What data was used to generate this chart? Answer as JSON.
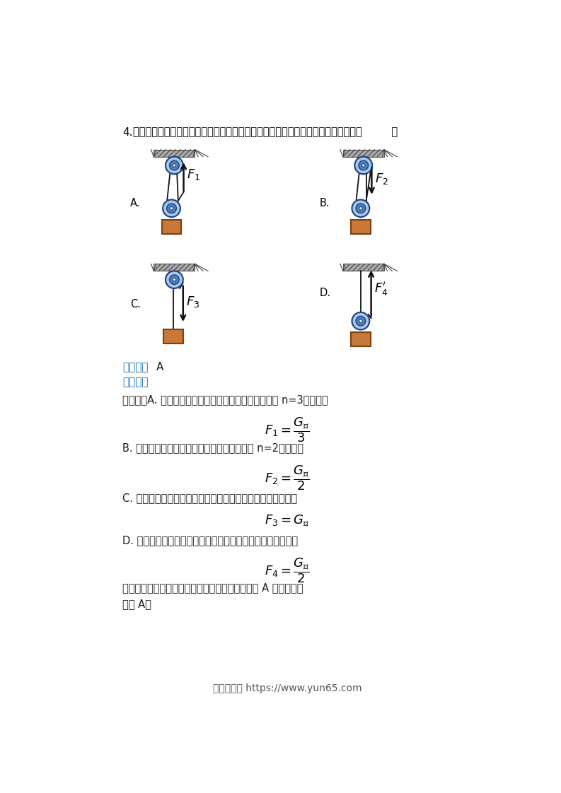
{
  "bg_color": "#ffffff",
  "q_num": "4.",
  "q_text": "分别使用图中四种装置匀速提升同一重物，不计滑轮重、绳重和摩擦，最省力的是（         ）",
  "label_A": "A.",
  "label_B": "B.",
  "label_C": "C.",
  "label_D": "D.",
  "answer_bracket": "【答案】",
  "answer_val": "A",
  "analysis_bracket": "【解析】",
  "detail_A": "【详解】A. 不计滑轮重、绳重和摩擦，承重绳子的段数 n=3，则拉力",
  "detail_B": "B. 不计滑轮重、绳重和摩擦，承重绳子的段数 n=2，则拉力",
  "detail_C": "C. 定滑轮相当于等臂杠杆，不计滑轮重、绳重和摩擦，则拉力",
  "detail_D": "D. 动滑轮相当于省力杠杆，不计滑轮重、绳重和摩擦，则拉力",
  "summary": "综上，四种装置匀速提升同一重物，则最省力的是 A 中的装置。",
  "conclusion": "故选 A。",
  "footer": "云锋学科网 https://www.yun65.com",
  "blue_color": "#1a6faf",
  "text_color": "#1a1a1a",
  "hatch_color": "#666666",
  "pulley_outer": "#a8c8e8",
  "pulley_inner": "#5080b8",
  "pulley_edge": "#1a4080",
  "weight_face": "#c87838",
  "weight_edge": "#7a4010",
  "rope_color": "#111111",
  "arrow_color": "#111111"
}
